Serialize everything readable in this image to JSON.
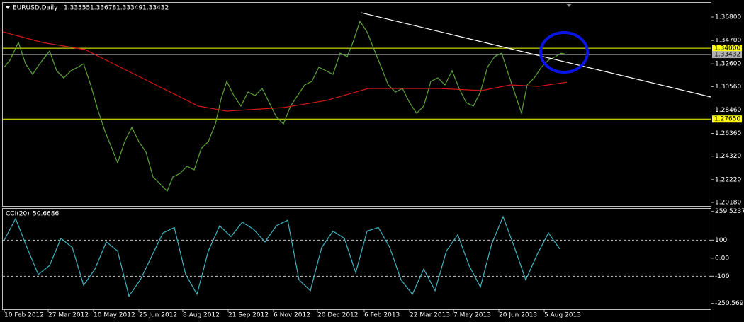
{
  "header": {
    "symbol": "EURUSD,Daily",
    "open": 1.33555,
    "high": 1.33678,
    "low": 1.33349,
    "close": 1.33432
  },
  "chart_data": [
    {
      "type": "line",
      "xlim": [
        0,
        499.5
      ],
      "xticks": [
        {
          "value": 1,
          "label": "10 Feb 2012"
        },
        {
          "value": 32,
          "label": "27 Mar 2012"
        },
        {
          "value": 64,
          "label": "10 May 2012"
        },
        {
          "value": 96,
          "label": "25 Jun 2012"
        },
        {
          "value": 127,
          "label": "8 Aug 2012"
        },
        {
          "value": 159,
          "label": "21 Sep 2012"
        },
        {
          "value": 191,
          "label": "6 Nov 2012"
        },
        {
          "value": 222,
          "label": "20 Dec 2012"
        },
        {
          "value": 255,
          "label": "6 Feb 2013"
        },
        {
          "value": 287,
          "label": "22 Mar 2013"
        },
        {
          "value": 318,
          "label": "7 May 2013"
        },
        {
          "value": 350,
          "label": "20 Jun 2013"
        },
        {
          "value": 382,
          "label": "5 Aug 2013"
        }
      ],
      "ylim": [
        1.1986,
        1.3807
      ],
      "yticks": [
        {
          "value": 1.368,
          "label": "1.36800"
        },
        {
          "value": 1.347,
          "label": "1.34700"
        },
        {
          "value": 1.326,
          "label": "1.32600"
        },
        {
          "value": 1.3056,
          "label": "1.30560"
        },
        {
          "value": 1.2846,
          "label": "1.28460"
        },
        {
          "value": 1.2636,
          "label": "1.26360"
        },
        {
          "value": 1.2432,
          "label": "1.24320"
        },
        {
          "value": 1.2222,
          "label": "1.22220"
        },
        {
          "value": 1.2018,
          "label": "1.20180"
        }
      ],
      "series": [
        {
          "color": "#5ca33a",
          "x": [
            1,
            5,
            11,
            16,
            21,
            26,
            33,
            38,
            43,
            48,
            53,
            57,
            62,
            67,
            72,
            77,
            81,
            86,
            91,
            96,
            101,
            106,
            111,
            116,
            120,
            125,
            130,
            135,
            140,
            145,
            150,
            154,
            158,
            163,
            168,
            173,
            178,
            183,
            188,
            193,
            198,
            203,
            208,
            213,
            218,
            223,
            228,
            233,
            238,
            243,
            247,
            252,
            257,
            262,
            267,
            272,
            277,
            282,
            287,
            292,
            297,
            302,
            307,
            312,
            317,
            322,
            327,
            332,
            337,
            342,
            347,
            352,
            356,
            361,
            366,
            370,
            375,
            380,
            385,
            390,
            394,
            398
          ],
          "values": [
            1.323,
            1.3293,
            1.3452,
            1.3261,
            1.3166,
            1.3261,
            1.3375,
            1.3198,
            1.3134,
            1.3198,
            1.323,
            1.3261,
            1.3071,
            1.2849,
            1.2658,
            1.25,
            1.2373,
            1.2563,
            1.269,
            1.2563,
            1.2468,
            1.2246,
            1.2183,
            1.2119,
            1.2246,
            1.2278,
            1.2341,
            1.2309,
            1.25,
            1.2563,
            1.2722,
            1.2944,
            1.3103,
            1.2976,
            1.2881,
            1.3007,
            1.2976,
            1.3039,
            1.2912,
            1.2785,
            1.2722,
            1.2881,
            1.2976,
            1.3071,
            1.3103,
            1.323,
            1.3198,
            1.3166,
            1.3356,
            1.3325,
            1.3452,
            1.3642,
            1.3547,
            1.3388,
            1.323,
            1.3071,
            1.3007,
            1.3039,
            1.2912,
            1.2817,
            1.2881,
            1.3103,
            1.3134,
            1.3071,
            1.3198,
            1.3039,
            1.2912,
            1.2881,
            1.3007,
            1.323,
            1.3325,
            1.3356,
            1.3198,
            1.3007,
            1.2817,
            1.3071,
            1.3134,
            1.323,
            1.3293,
            1.3325,
            1.3356,
            1.3343
          ]
        },
        {
          "color": "#d01818",
          "x": [
            0,
            28,
            58,
            78,
            108,
            138,
            158,
            198,
            228,
            258,
            278,
            308,
            338,
            358,
            378,
            398
          ],
          "values": [
            1.3547,
            1.3452,
            1.3388,
            1.3261,
            1.3071,
            1.2881,
            1.2836,
            1.2868,
            1.2931,
            1.3039,
            1.3039,
            1.3039,
            1.302,
            1.3071,
            1.3058,
            1.3096
          ]
        }
      ],
      "trendline": {
        "color": "#ffffff",
        "x": [
          253,
          499.5
        ],
        "values": [
          1.3718,
          1.2963
        ]
      },
      "levels": [
        {
          "value": 1.34,
          "label": "1.34000",
          "color": "#ffff00"
        },
        {
          "value": 1.33432,
          "label": "1.33432",
          "color": "#b0b0b0"
        },
        {
          "value": 1.2765,
          "label": "1.27650",
          "color": "#ffff00"
        }
      ]
    },
    {
      "type": "line",
      "title": "CCI(20)",
      "current": 50.6686,
      "xlim": [
        0,
        499.5
      ],
      "ylim": [
        -283,
        278
      ],
      "yticks": [
        259.5237,
        100,
        {
          "value": 0,
          "label": "0.00"
        },
        -100,
        -250.569
      ],
      "levels": [
        100,
        -100
      ],
      "series": [
        {
          "color": "#3fb4c0",
          "x": [
            1,
            9,
            17,
            25,
            33,
            41,
            49,
            57,
            65,
            73,
            81,
            89,
            97,
            105,
            113,
            121,
            129,
            137,
            145,
            153,
            161,
            169,
            177,
            185,
            193,
            201,
            209,
            217,
            225,
            233,
            241,
            249,
            257,
            265,
            273,
            281,
            289,
            297,
            305,
            313,
            321,
            329,
            337,
            345,
            353,
            361,
            369,
            377,
            385,
            393
          ],
          "values": [
            100,
            220,
            60,
            -90,
            -40,
            110,
            60,
            -150,
            -60,
            90,
            40,
            -210,
            -120,
            10,
            140,
            170,
            -90,
            -200,
            40,
            180,
            120,
            200,
            160,
            90,
            180,
            210,
            -120,
            -180,
            60,
            150,
            110,
            -80,
            150,
            170,
            60,
            -120,
            -200,
            -60,
            -180,
            40,
            130,
            -40,
            -160,
            80,
            230,
            60,
            -120,
            20,
            140,
            50.6686
          ]
        }
      ]
    }
  ]
}
